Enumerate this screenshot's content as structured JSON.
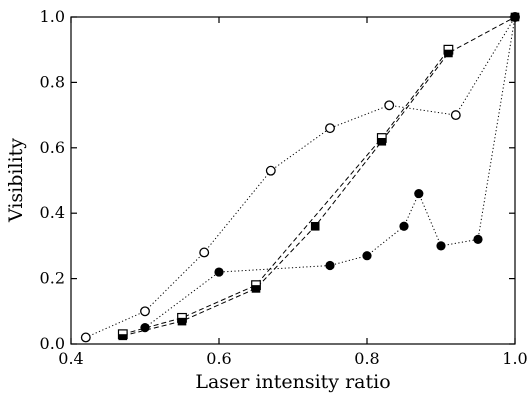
{
  "chart_data": {
    "type": "scatter",
    "title": "",
    "xlabel": "Laser intensity ratio",
    "ylabel": "Visibility",
    "xlim": [
      0.4,
      1.0
    ],
    "ylim": [
      0.0,
      1.0
    ],
    "x_ticks": [
      "0.4",
      "0.6",
      "0.8",
      "1.0"
    ],
    "y_ticks": [
      "0.0",
      "0.2",
      "0.4",
      "0.6",
      "0.8",
      "1.0"
    ],
    "x_tick_values": [
      0.4,
      0.6,
      0.8,
      1.0
    ],
    "y_tick_values": [
      0.0,
      0.2,
      0.4,
      0.6,
      0.8,
      1.0
    ],
    "grid": false,
    "legend": "none",
    "series": [
      {
        "marker": "open-circle",
        "line": "dotted",
        "x": [
          0.42,
          0.5,
          0.58,
          0.67,
          0.75,
          0.83,
          0.92,
          1.0
        ],
        "y": [
          0.02,
          0.1,
          0.28,
          0.53,
          0.66,
          0.73,
          0.7,
          1.0
        ]
      },
      {
        "marker": "filled-circle",
        "line": "dotted",
        "x": [
          0.5,
          0.6,
          0.75,
          0.8,
          0.85,
          0.87,
          0.9,
          0.95,
          1.0
        ],
        "y": [
          0.05,
          0.22,
          0.24,
          0.27,
          0.36,
          0.46,
          0.3,
          0.32,
          1.0
        ]
      },
      {
        "marker": "filled-square",
        "line": "dashed",
        "x": [
          0.47,
          0.55,
          0.65,
          0.73,
          0.82,
          0.91,
          1.0
        ],
        "y": [
          0.025,
          0.07,
          0.17,
          0.36,
          0.62,
          0.89,
          1.0
        ]
      },
      {
        "marker": "half-filled-square",
        "line": "dashed",
        "x": [
          0.47,
          0.55,
          0.65,
          0.82,
          0.91
        ],
        "y": [
          0.03,
          0.08,
          0.18,
          0.63,
          0.9
        ]
      }
    ]
  },
  "colors": {
    "ink": "#000000",
    "background": "#ffffff"
  }
}
